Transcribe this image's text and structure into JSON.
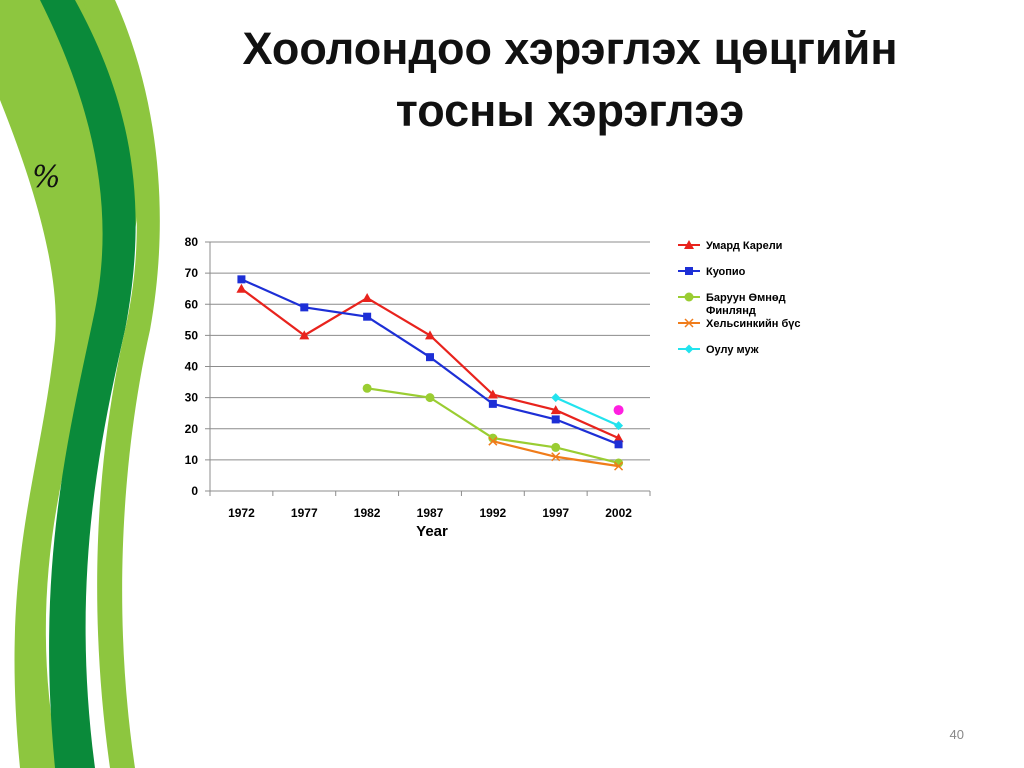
{
  "slide": {
    "title_line1": "Хоолондоо хэрэглэх цөцгийн",
    "title_line2": "тосны хэрэглээ",
    "unit_label": "%",
    "page_number": "40"
  },
  "colors": {
    "deco_dark_green": "#0a8a3a",
    "deco_light_green": "#8dc63f"
  },
  "chart_data": {
    "type": "line",
    "title": "",
    "xlabel": "Year",
    "ylabel": "",
    "categories": [
      "1972",
      "1977",
      "1982",
      "1987",
      "1992",
      "1997",
      "2002"
    ],
    "ylim": [
      0,
      80
    ],
    "yticks": [
      0,
      10,
      20,
      30,
      40,
      50,
      60,
      70,
      80
    ],
    "grid": true,
    "legend_position": "right",
    "series": [
      {
        "name": "Умард Карели",
        "color": "#e8231d",
        "marker": "triangle",
        "values": [
          65,
          50,
          62,
          50,
          31,
          26,
          17
        ]
      },
      {
        "name": "Куопио",
        "color": "#1d2fd6",
        "marker": "square",
        "values": [
          68,
          59,
          56,
          43,
          28,
          23,
          15
        ]
      },
      {
        "name": "Баруун Өмнөд Финлянд",
        "color": "#9acd32",
        "marker": "circle",
        "values": [
          null,
          null,
          33,
          30,
          17,
          14,
          9
        ]
      },
      {
        "name": "Хельсинкийн бүс",
        "color": "#f07c1a",
        "marker": "x",
        "values": [
          null,
          null,
          null,
          null,
          16,
          11,
          8
        ]
      },
      {
        "name": "Оулу муж",
        "color": "#22e3ee",
        "marker": "diamond",
        "values": [
          null,
          null,
          null,
          null,
          null,
          30,
          21
        ]
      }
    ],
    "annotations": [
      {
        "category": "2002",
        "value": 26,
        "color": "#ff1fe0",
        "marker": "circle"
      }
    ]
  }
}
